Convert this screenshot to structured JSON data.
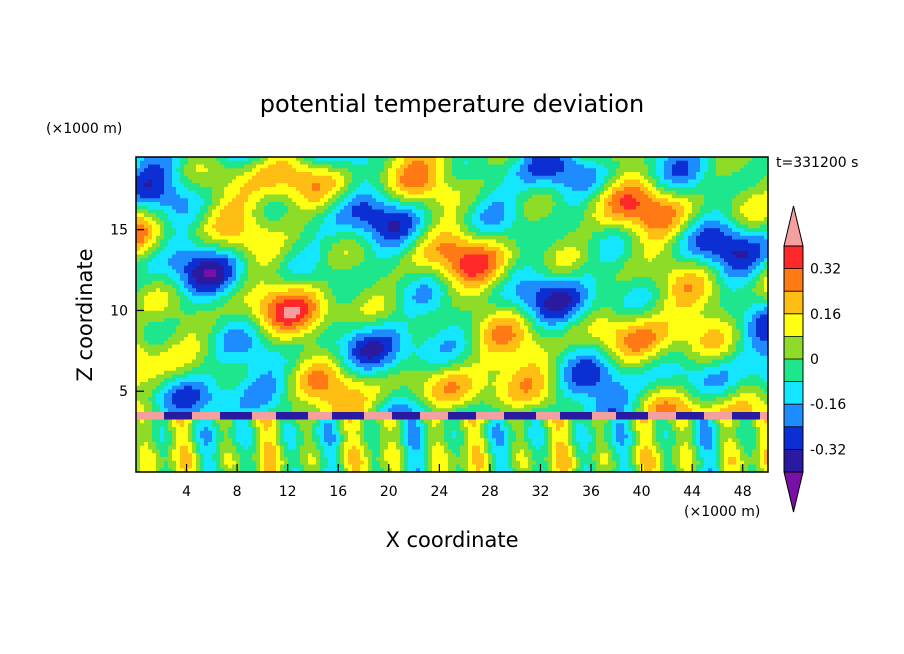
{
  "chart_data": {
    "type": "heatmap",
    "title": "potential temperature deviation",
    "xlabel": "X coordinate",
    "ylabel": "Z coordinate",
    "x_unit": "(×1000 m)",
    "y_unit": "(×1000 m)",
    "time_label": "t=331200 s",
    "xlim": [
      0,
      50
    ],
    "ylim": [
      0,
      19.5
    ],
    "x_ticks": [
      4,
      8,
      12,
      16,
      20,
      24,
      28,
      32,
      36,
      40,
      44,
      48
    ],
    "y_ticks": [
      5,
      10,
      15
    ],
    "colorbar": {
      "levels": [
        -0.4,
        -0.32,
        -0.24,
        -0.16,
        -0.08,
        0,
        0.08,
        0.16,
        0.24,
        0.32,
        0.4
      ],
      "labels": [
        "0.32",
        "0.16",
        "0",
        "-0.16",
        "-0.32"
      ],
      "label_values": [
        0.32,
        0.16,
        0,
        -0.16,
        -0.32
      ],
      "colors": [
        "#7a0fa6",
        "#2a1aa0",
        "#0b2fd2",
        "#1e8cff",
        "#14e6ff",
        "#1ee68c",
        "#8cdc28",
        "#ffff14",
        "#ffbe14",
        "#ff7a14",
        "#ff2828",
        "#f4a0a0"
      ],
      "extend": "both"
    },
    "grid": false,
    "legend_position": "right"
  }
}
